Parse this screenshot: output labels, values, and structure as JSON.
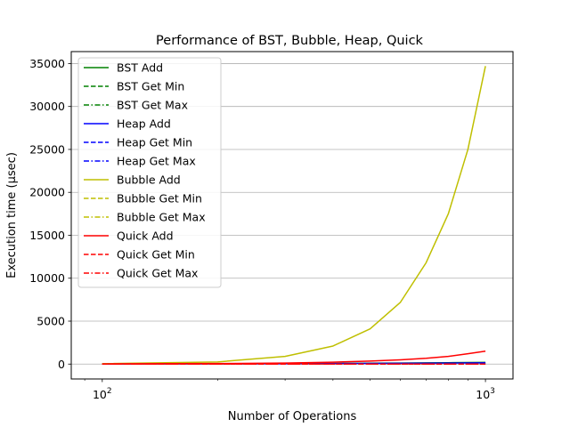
{
  "chart_data": {
    "type": "line",
    "title": "Performance of BST, Bubble, Heap, Quick",
    "xlabel": "Number of Operations",
    "ylabel": "Execution time (μsec)",
    "xscale": "log",
    "xlim": [
      83,
      1180
    ],
    "ylim": [
      -1734,
      36393
    ],
    "grid": "y-major",
    "legend_position": "upper left",
    "x": [
      100,
      200,
      300,
      400,
      500,
      600,
      700,
      800,
      900,
      1000
    ],
    "x_ticks": [
      {
        "value": 100,
        "base": "10",
        "exp": "2"
      },
      {
        "value": 1000,
        "base": "10",
        "exp": "3"
      }
    ],
    "y_ticks": [
      {
        "value": 0,
        "label": "0"
      },
      {
        "value": 5000,
        "label": "5000"
      },
      {
        "value": 10000,
        "label": "10000"
      },
      {
        "value": 15000,
        "label": "15000"
      },
      {
        "value": 20000,
        "label": "20000"
      },
      {
        "value": 25000,
        "label": "25000"
      },
      {
        "value": 30000,
        "label": "30000"
      },
      {
        "value": 35000,
        "label": "35000"
      }
    ],
    "series": [
      {
        "name": "BST Add",
        "color": "#008000",
        "dash": "solid",
        "values": [
          20,
          40,
          60,
          80,
          100,
          120,
          140,
          160,
          180,
          200
        ]
      },
      {
        "name": "BST Get Min",
        "color": "#008000",
        "dash": "dashed",
        "values": [
          1,
          1,
          1,
          1,
          1,
          1,
          1,
          1,
          1,
          1
        ]
      },
      {
        "name": "BST Get Max",
        "color": "#008000",
        "dash": "dashdot",
        "values": [
          1,
          1,
          1,
          1,
          1,
          1,
          1,
          1,
          1,
          1
        ]
      },
      {
        "name": "Heap Add",
        "color": "#0000ff",
        "dash": "solid",
        "values": [
          15,
          30,
          45,
          60,
          75,
          90,
          105,
          120,
          135,
          150
        ]
      },
      {
        "name": "Heap Get Min",
        "color": "#0000ff",
        "dash": "dashed",
        "values": [
          1,
          1,
          1,
          1,
          1,
          1,
          1,
          1,
          1,
          1
        ]
      },
      {
        "name": "Heap Get Max",
        "color": "#0000ff",
        "dash": "dashdot",
        "values": [
          5,
          10,
          15,
          20,
          25,
          30,
          35,
          40,
          45,
          50
        ]
      },
      {
        "name": "Bubble Add",
        "color": "#bfbf00",
        "dash": "solid",
        "values": [
          50,
          250,
          900,
          2100,
          4100,
          7200,
          11800,
          17500,
          25000,
          34700
        ]
      },
      {
        "name": "Bubble Get Min",
        "color": "#bfbf00",
        "dash": "dashed",
        "values": [
          1,
          1,
          1,
          1,
          1,
          1,
          1,
          1,
          1,
          1
        ]
      },
      {
        "name": "Bubble Get Max",
        "color": "#bfbf00",
        "dash": "dashdot",
        "values": [
          1,
          1,
          1,
          1,
          1,
          1,
          1,
          1,
          1,
          1
        ]
      },
      {
        "name": "Quick Add",
        "color": "#ff0000",
        "dash": "solid",
        "values": [
          20,
          60,
          120,
          220,
          350,
          500,
          680,
          900,
          1200,
          1500
        ]
      },
      {
        "name": "Quick Get Min",
        "color": "#ff0000",
        "dash": "dashed",
        "values": [
          1,
          1,
          1,
          1,
          1,
          1,
          1,
          1,
          1,
          1
        ]
      },
      {
        "name": "Quick Get Max",
        "color": "#ff0000",
        "dash": "dashdot",
        "values": [
          1,
          1,
          1,
          1,
          1,
          1,
          1,
          1,
          1,
          1
        ]
      }
    ]
  }
}
